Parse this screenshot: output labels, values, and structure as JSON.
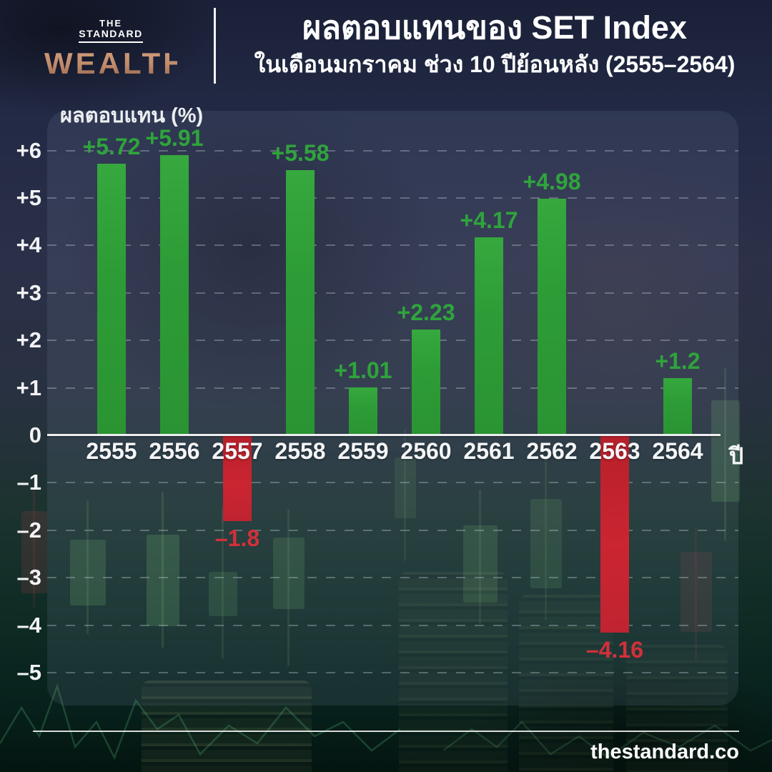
{
  "header": {
    "logo": {
      "line1": "THE",
      "line2": "STANDARD",
      "line3": "WEALTH",
      "wealth_color": "#c08a6a"
    },
    "title": "ผลตอบแทนของ SET Index",
    "subtitle": "ในเดือนมกราคม ช่วง 10 ปีย้อนหลัง (2555–2564)"
  },
  "chart_data": {
    "type": "bar",
    "title": "ผลตอบแทนของ SET Index ในเดือนมกราคม ช่วง 10 ปีย้อนหลัง (2555–2564)",
    "ylabel": "ผลตอบแทน (%)",
    "xlabel": "ปี",
    "categories": [
      "2555",
      "2556",
      "2557",
      "2558",
      "2559",
      "2560",
      "2561",
      "2562",
      "2563",
      "2564"
    ],
    "values": [
      5.72,
      5.91,
      -1.8,
      5.58,
      1.01,
      2.23,
      4.17,
      4.98,
      -4.16,
      1.2
    ],
    "labels": [
      "+5.72",
      "+5.91",
      "–1.8",
      "+5.58",
      "+1.01",
      "+2.23",
      "+4.17",
      "+4.98",
      "–4.16",
      "+1.2"
    ],
    "ylim": [
      -5,
      6
    ],
    "yticks": [
      6,
      5,
      4,
      3,
      2,
      1,
      0,
      -1,
      -2,
      -3,
      -4,
      -5
    ],
    "ytick_labels": [
      "+6",
      "+5",
      "+4",
      "+3",
      "+2",
      "+1",
      "0",
      "–1",
      "–2",
      "–3",
      "–4",
      "–5"
    ],
    "grid": "dashed horizontal, solid zero axis",
    "legend": "none",
    "colors": {
      "positive": "#2f9e37",
      "negative": "#c2232c",
      "positive_label": "#2fa43c",
      "negative_label": "#d2303a"
    }
  },
  "footer": {
    "url": "thestandard.co"
  }
}
